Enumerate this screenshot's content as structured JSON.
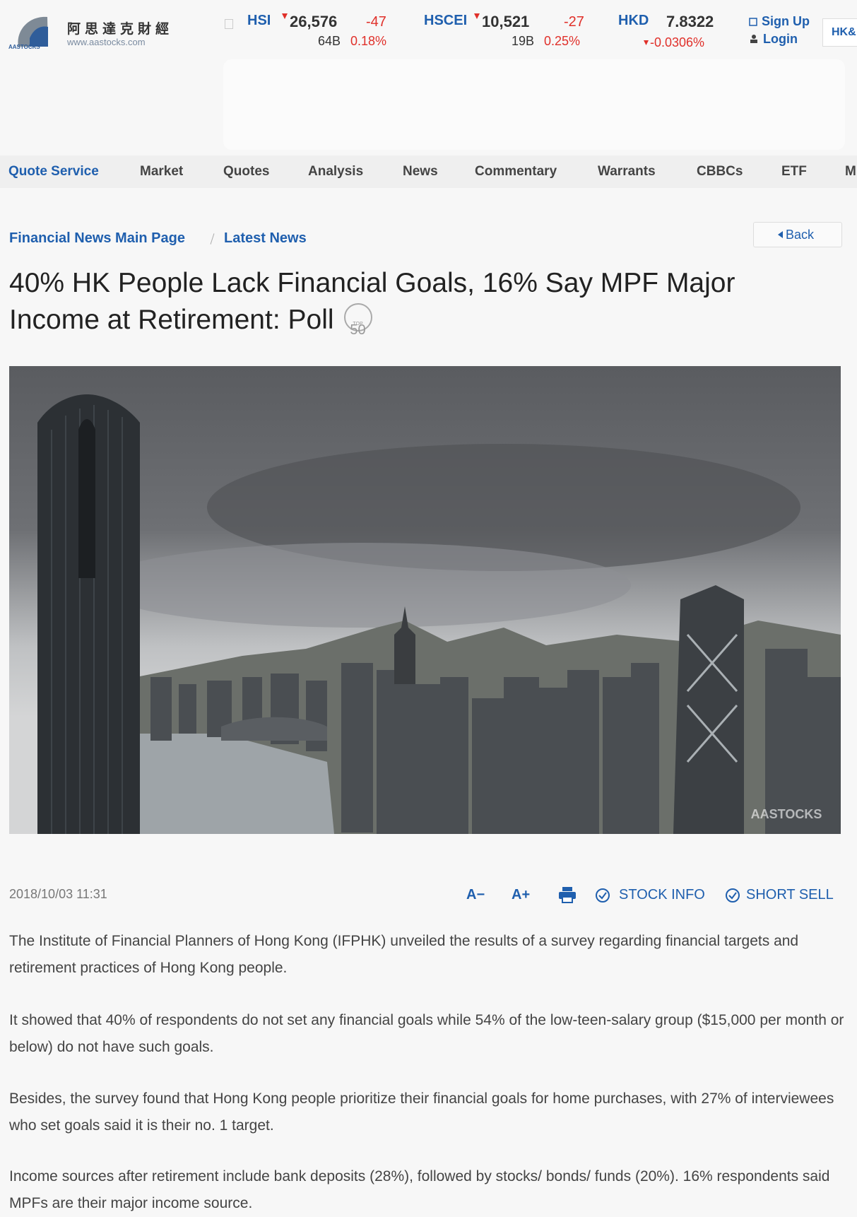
{
  "header": {
    "logo_cn": "阿思達克財經",
    "logo_url": "www.aastocks.com",
    "logo_brand": "AASTOCKS",
    "tickers": [
      {
        "name": "HSI",
        "value": "26,576",
        "change": "-47",
        "turnover": "64B",
        "pct": "0.18%"
      },
      {
        "name": "HSCEI",
        "value": "10,521",
        "change": "-27",
        "turnover": "19B",
        "pct": "0.25%"
      },
      {
        "name": "HKD",
        "value": "7.8322",
        "pct": "-0.0306%"
      }
    ],
    "sign_up": "Sign Up",
    "login": "Login",
    "lang": "HK&"
  },
  "nav": [
    "Quote Service",
    "Market",
    "Quotes",
    "Analysis",
    "News",
    "Commentary",
    "Warrants",
    "CBBCs",
    "ETF",
    "M"
  ],
  "breadcrumb": [
    "Financial News Main Page",
    "Latest News"
  ],
  "back": "Back",
  "article": {
    "title": "40% HK People Lack Financial Goals, 16% Say MPF Major Income at Retirement: Poll",
    "badge": {
      "top": "TOP",
      "num": "50"
    },
    "image_watermark": "AASTOCKS",
    "date": "2018/10/03 11:31",
    "tools": [
      "A−",
      "A+",
      "STOCK INFO",
      "SHORT SELL"
    ],
    "paragraphs": [
      "The Institute of Financial Planners of Hong Kong (IFPHK) unveiled the results of a survey regarding financial targets and retirement practices of Hong Kong people.",
      "It showed that 40% of respondents do not set any financial goals while 54% of the low-teen-salary group ($15,000 per month or below) do not have such goals.",
      "Besides, the survey found that Hong Kong people prioritize their financial goals for home purchases, with 27% of interviewees who set goals said it is their no. 1 target.",
      "Income sources after retirement include bank deposits (28%), followed by stocks/ bonds/ funds (20%). 16% respondents said MPFs are their major income source."
    ]
  }
}
